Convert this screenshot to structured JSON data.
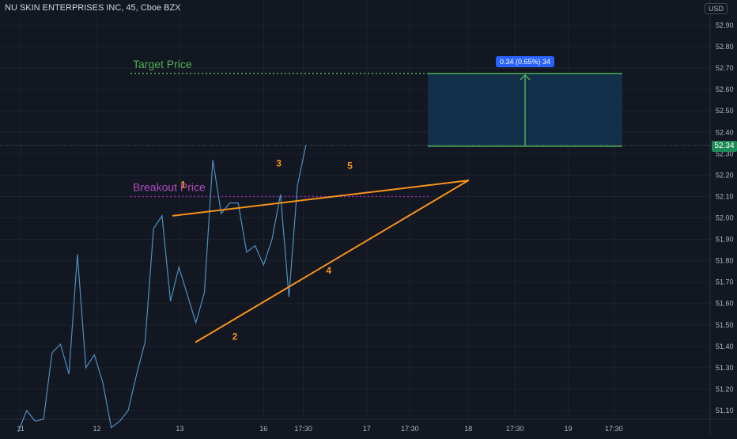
{
  "header": {
    "title": "NU SKIN ENTERPRISES INC, 45, Cboe BZX",
    "currency": "USD"
  },
  "annotations": {
    "target_label": "Target Price",
    "breakout_label": "Breakout Price",
    "measure_tag": "0.34 (0.65%) 34",
    "current_price": "52.34",
    "points": [
      "1",
      "2",
      "3",
      "4",
      "5"
    ]
  },
  "colors": {
    "background": "#131722",
    "grid": "#1e222d",
    "price_line": "#4a90c4",
    "target": "#4caf50",
    "breakout": "#9c27b0",
    "trendline": "#f7931a",
    "target_box_fill": "#14304d",
    "price_badge": "#1e8a57",
    "measure_tag": "#2962ff"
  },
  "chart_data": {
    "type": "line",
    "title": "NU SKIN ENTERPRISES INC, 45, Cboe BZX",
    "xlabel": "",
    "ylabel": "",
    "ylim": [
      51.03,
      52.98
    ],
    "grid": true,
    "y_ticks": [
      "51.10",
      "51.20",
      "51.30",
      "51.40",
      "51.50",
      "51.60",
      "51.70",
      "51.80",
      "51.90",
      "52.00",
      "52.10",
      "52.20",
      "52.30",
      "52.40",
      "52.50",
      "52.60",
      "52.70",
      "52.80",
      "52.90"
    ],
    "x_ticks": [
      {
        "label": "11",
        "index": 0.3
      },
      {
        "label": "12",
        "index": 9.3
      },
      {
        "label": "13",
        "index": 19.1
      },
      {
        "label": "16",
        "index": 29.0
      },
      {
        "label": "17:30",
        "index": 33.7
      },
      {
        "label": "17",
        "index": 41.2
      },
      {
        "label": "17:30",
        "index": 46.3
      },
      {
        "label": "18",
        "index": 53.2
      },
      {
        "label": "17:30",
        "index": 58.7
      },
      {
        "label": "19",
        "index": 65.0
      },
      {
        "label": "17:30",
        "index": 70.4
      }
    ],
    "series": [
      {
        "values": [
          51.0,
          51.1,
          51.05,
          51.06,
          51.37,
          51.41,
          51.27,
          51.83,
          51.3,
          51.36,
          51.23,
          51.02,
          51.05,
          51.1,
          51.27,
          51.42,
          51.95,
          52.01,
          51.61,
          51.77,
          51.64,
          51.51,
          51.65,
          52.27,
          52.02,
          52.07,
          52.07,
          51.84,
          51.87,
          51.78,
          51.9,
          52.11,
          51.63,
          52.15,
          52.34
        ]
      }
    ],
    "target_price": 52.675,
    "breakout_price": 52.1,
    "current_price": 52.34,
    "measure": {
      "from": 52.335,
      "to": 52.675
    },
    "trendlines": [
      {
        "from": [
          18.3,
          52.01
        ],
        "to": [
          53.2,
          52.175
        ]
      },
      {
        "from": [
          21.0,
          51.42
        ],
        "to": [
          53.2,
          52.175
        ]
      }
    ],
    "point_labels": [
      {
        "label": "1",
        "index": 19.5,
        "value": 52.14
      },
      {
        "label": "2",
        "index": 25.6,
        "value": 51.43
      },
      {
        "label": "3",
        "index": 30.8,
        "value": 52.24
      },
      {
        "label": "4",
        "index": 36.7,
        "value": 51.74
      },
      {
        "label": "5",
        "index": 39.2,
        "value": 52.23
      }
    ]
  }
}
